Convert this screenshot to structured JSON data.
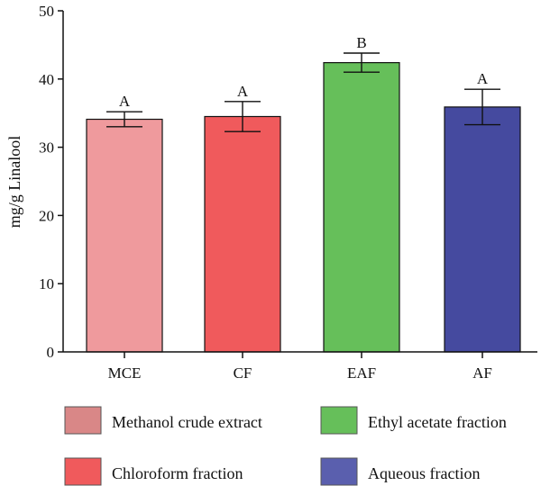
{
  "chart_data": {
    "type": "bar",
    "ylabel": "mg/g Linalool",
    "xlabel": "",
    "ylim": [
      0,
      50
    ],
    "yticks": [
      0,
      10,
      20,
      30,
      40,
      50
    ],
    "categories": [
      "MCE",
      "CF",
      "EAF",
      "AF"
    ],
    "values": [
      34.1,
      34.5,
      42.4,
      35.9
    ],
    "errors": [
      1.1,
      2.2,
      1.4,
      2.6
    ],
    "significance": [
      "A",
      "A",
      "B",
      "A"
    ],
    "colors": [
      "#ef9a9d",
      "#f05a5c",
      "#66bf5a",
      "#454a9f"
    ],
    "grid": false,
    "legend_position": "bottom",
    "legend": [
      {
        "label": "Methanol crude extract",
        "color": "#d98787"
      },
      {
        "label": "Ethyl acetate fraction",
        "color": "#66bf5a"
      },
      {
        "label": "Chloroform fraction",
        "color": "#f05a5c"
      },
      {
        "label": "Aqueous fraction",
        "color": "#5a5fae"
      }
    ]
  }
}
